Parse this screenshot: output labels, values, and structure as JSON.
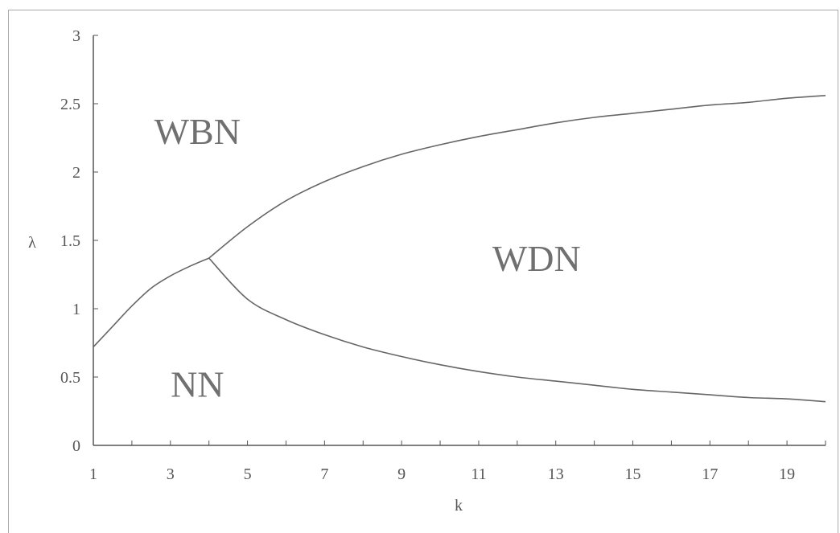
{
  "chart_data": {
    "type": "line",
    "xlabel": "k",
    "ylabel": "λ",
    "xlim": [
      1,
      20
    ],
    "ylim": [
      0,
      3
    ],
    "x_ticks": [
      1,
      3,
      5,
      7,
      9,
      11,
      13,
      15,
      17,
      19
    ],
    "y_ticks": [
      "0",
      "0.5",
      "1",
      "1.5",
      "2",
      "2.5",
      "3"
    ],
    "grid": false,
    "legend": "none",
    "series": [
      {
        "x": [
          1,
          1.5,
          2,
          2.5,
          3,
          3.5,
          4
        ],
        "y": [
          0.72,
          0.87,
          1.02,
          1.15,
          1.24,
          1.31,
          1.37
        ]
      },
      {
        "x": [
          4,
          5,
          6,
          7,
          8,
          9,
          10,
          11,
          12,
          13,
          14,
          15,
          16,
          17,
          18,
          19,
          20
        ],
        "y": [
          1.37,
          1.6,
          1.79,
          1.93,
          2.04,
          2.13,
          2.2,
          2.26,
          2.31,
          2.36,
          2.4,
          2.43,
          2.46,
          2.49,
          2.51,
          2.54,
          2.56
        ]
      },
      {
        "x": [
          4,
          5,
          6,
          7,
          8,
          9,
          10,
          11,
          12,
          13,
          14,
          15,
          16,
          17,
          18,
          19,
          20
        ],
        "y": [
          1.37,
          1.07,
          0.92,
          0.81,
          0.72,
          0.65,
          0.59,
          0.54,
          0.5,
          0.47,
          0.44,
          0.41,
          0.39,
          0.37,
          0.35,
          0.34,
          0.32
        ]
      }
    ],
    "annotations": [
      {
        "text": "WBN",
        "x": 3.7,
        "y": 2.3
      },
      {
        "text": "WDN",
        "x": 12.5,
        "y": 1.37
      },
      {
        "text": "NN",
        "x": 3.7,
        "y": 0.45
      }
    ]
  }
}
